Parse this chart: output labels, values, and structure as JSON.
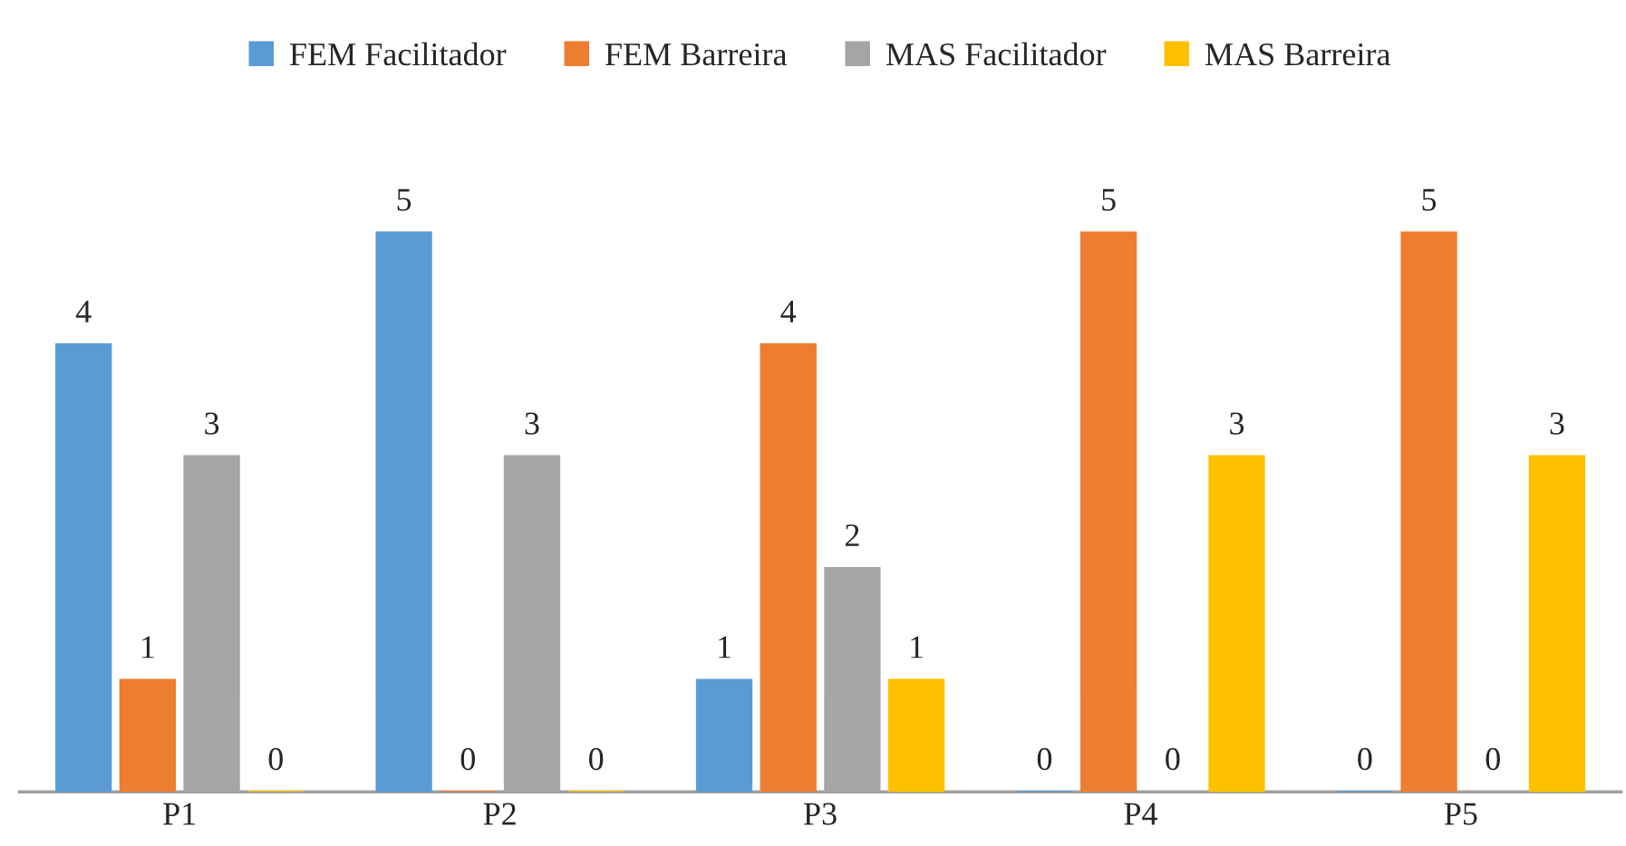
{
  "chart_data": {
    "type": "bar",
    "categories": [
      "P1",
      "P2",
      "P3",
      "P4",
      "P5"
    ],
    "series": [
      {
        "name": "FEM Facilitador",
        "color": "#5b9bd5",
        "values": [
          4,
          5,
          1,
          0,
          0
        ]
      },
      {
        "name": "FEM Barreira",
        "color": "#ed7d31",
        "values": [
          1,
          0,
          4,
          5,
          5
        ]
      },
      {
        "name": "MAS Facilitador",
        "color": "#a5a5a5",
        "values": [
          3,
          3,
          2,
          0,
          0
        ]
      },
      {
        "name": "MAS Barreira",
        "color": "#ffc000",
        "values": [
          0,
          0,
          1,
          3,
          3
        ]
      }
    ],
    "data_labels": true,
    "legend": "top",
    "grid": false,
    "tick_labels": "x"
  }
}
